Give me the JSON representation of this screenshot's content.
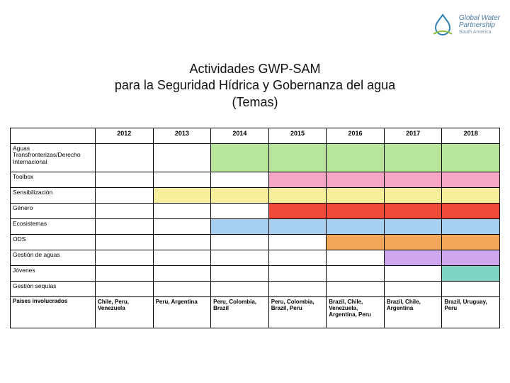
{
  "brand": {
    "line1": "Global Water",
    "line2": "Partnership",
    "line3": "South America",
    "icon_color": "#2f7fb5",
    "arc_color": "#8fbf3f"
  },
  "title": {
    "line1": "Actividades GWP-SAM",
    "line2": "para la Seguridad Hídrica y Gobernanza del agua",
    "line3": "(Temas)"
  },
  "header_colors": {
    "wave_dark": "#1c2a4a",
    "wave_mid": "#2f6aa8",
    "wave_light": "#6db8e6"
  },
  "table": {
    "years": [
      "2012",
      "2013",
      "2014",
      "2015",
      "2016",
      "2017",
      "2018"
    ],
    "palette": {
      "green": "#b7e59a",
      "pink": "#f7a6c5",
      "yellow": "#f7ef9c",
      "red": "#ef4a3a",
      "blue": "#a7cff0",
      "orange": "#f2a85a",
      "violet": "#cfa7ef",
      "teal": "#7fd4c4",
      "empty": "#ffffff"
    },
    "rows": [
      {
        "label": "Aguas Transfronterizas/Derecho Internacional",
        "tall": true,
        "cells": [
          "empty",
          "empty",
          "green",
          "green",
          "green",
          "green",
          "green"
        ]
      },
      {
        "label": "Toolbox",
        "cells": [
          "empty",
          "empty",
          "empty",
          "pink",
          "pink",
          "pink",
          "pink"
        ]
      },
      {
        "label": "Sensibilización",
        "cells": [
          "empty",
          "yellow",
          "yellow",
          "yellow",
          "yellow",
          "yellow",
          "yellow"
        ]
      },
      {
        "label": "Género",
        "cells": [
          "empty",
          "empty",
          "empty",
          "red",
          "red",
          "red",
          "red"
        ]
      },
      {
        "label": "Ecosistemas",
        "cells": [
          "empty",
          "empty",
          "blue",
          "blue",
          "blue",
          "blue",
          "blue"
        ]
      },
      {
        "label": "ODS",
        "cells": [
          "empty",
          "empty",
          "empty",
          "empty",
          "orange",
          "orange",
          "orange"
        ]
      },
      {
        "label": "Gestión de aguas",
        "cells": [
          "empty",
          "empty",
          "empty",
          "empty",
          "empty",
          "violet",
          "violet"
        ]
      },
      {
        "label": "Jóvenes",
        "cells": [
          "empty",
          "empty",
          "empty",
          "empty",
          "empty",
          "empty",
          "teal"
        ]
      },
      {
        "label": "Gestión sequías",
        "cells": [
          "empty",
          "empty",
          "empty",
          "empty",
          "empty",
          "empty",
          "empty"
        ]
      }
    ],
    "countries_row": {
      "label": "Países involucrados",
      "cells": [
        "Chile, Peru, Venezuela",
        "Peru, Argentina",
        "Peru, Colombia, Brazil",
        "Peru, Colombia, Brazil, Peru",
        "Brazil, Chile, Venezuela, Argentina, Peru",
        "Brazil, Chile, Argentina",
        "Brazil, Uruguay, Peru"
      ]
    }
  }
}
